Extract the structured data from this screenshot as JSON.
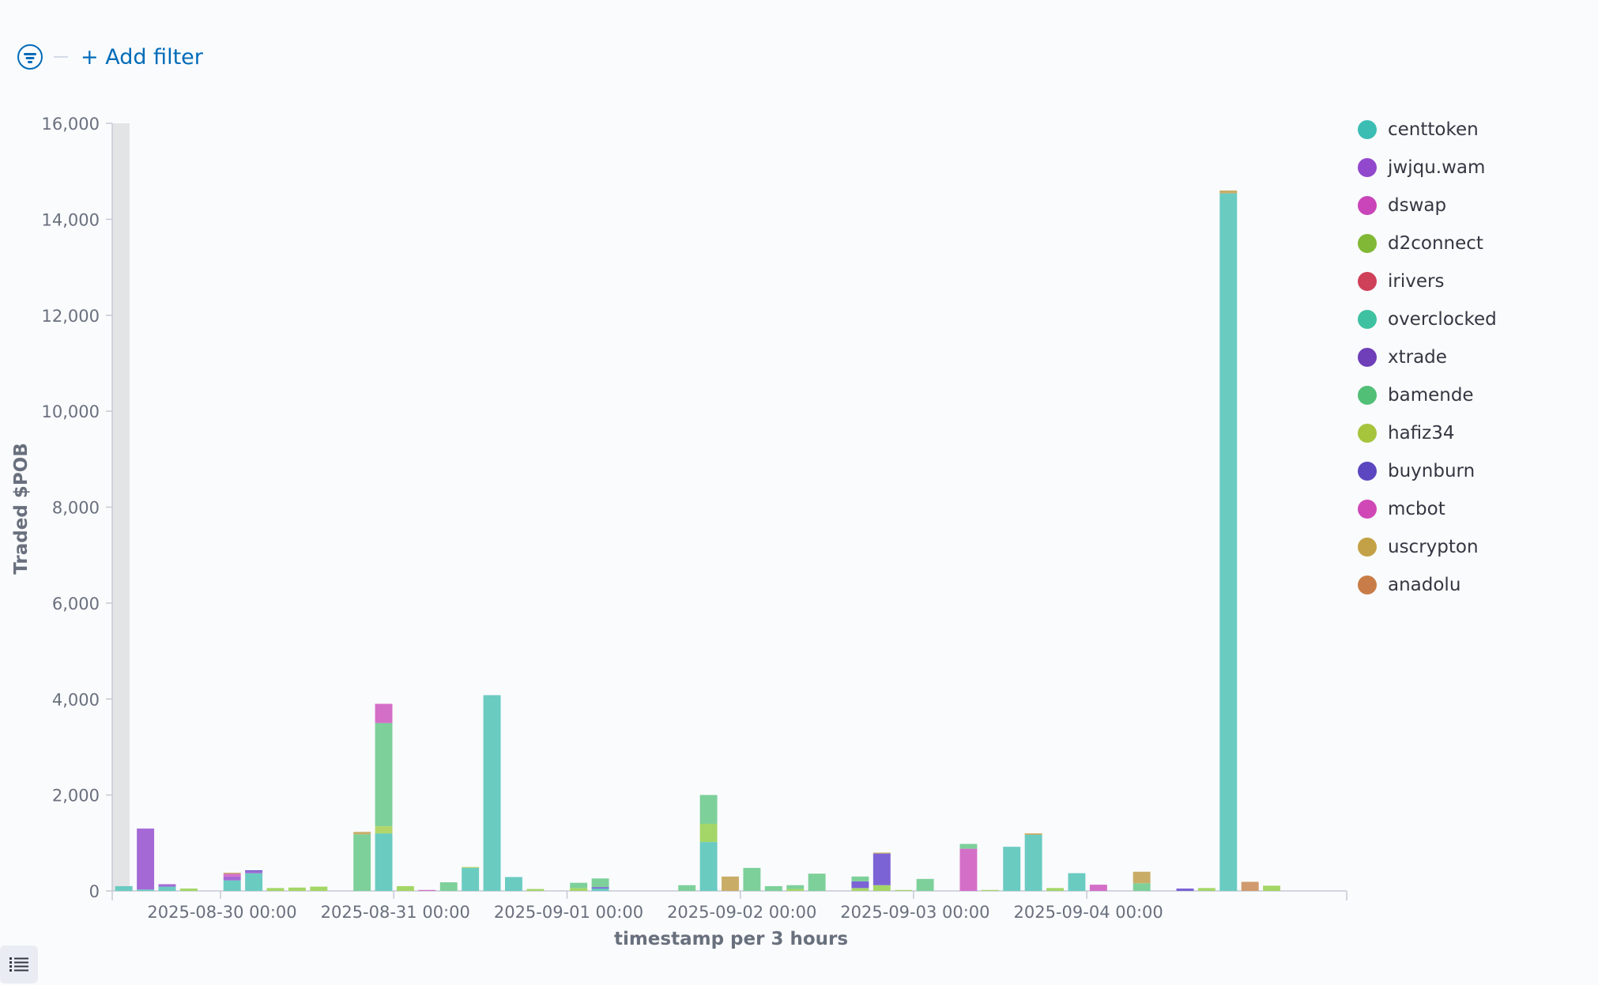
{
  "filter_bar": {
    "add_filter_label": "+ Add filter"
  },
  "legend_toggle_icon": "list-icon",
  "chart_data": {
    "type": "bar",
    "stacked": true,
    "xlabel": "timestamp per 3 hours",
    "ylabel": "Traded $POB",
    "ylim": [
      0,
      16000
    ],
    "yticks": [
      "0",
      "2,000",
      "4,000",
      "6,000",
      "8,000",
      "10,000",
      "12,000",
      "14,000",
      "16,000"
    ],
    "xticks": [
      {
        "label": "2025-08-30 00:00",
        "index": 5
      },
      {
        "label": "2025-08-31 00:00",
        "index": 13
      },
      {
        "label": "2025-09-01 00:00",
        "index": 21
      },
      {
        "label": "2025-09-02 00:00",
        "index": 29
      },
      {
        "label": "2025-09-03 00:00",
        "index": 37
      },
      {
        "label": "2025-09-04 00:00",
        "index": 45
      }
    ],
    "num_buckets": 57,
    "grid": false,
    "legend_position": "right",
    "series": [
      {
        "name": "centtoken",
        "color": "#54b399"
      },
      {
        "name": "jwjqu.wam",
        "color": "#9170b8"
      },
      {
        "name": "dswap",
        "color": "#ca8eae"
      },
      {
        "name": "d2connect",
        "color": "#d6bf57"
      },
      {
        "name": "irivers",
        "color": "#b9a888"
      },
      {
        "name": "overclocked",
        "color": "#da8b45"
      },
      {
        "name": "xtrade",
        "color": "#aa6556"
      },
      {
        "name": "bamende",
        "color": "#e7664c"
      },
      {
        "name": "hafiz34",
        "color": "#6092c0"
      },
      {
        "name": "buynburn",
        "color": "#d36086"
      },
      {
        "name": "mcbot",
        "color": "#f5a35c"
      },
      {
        "name": "uscrypton",
        "color": "#c5a89a"
      },
      {
        "name": "anadolu",
        "color": "#8bd1a0"
      }
    ],
    "legend_colors": [
      "#3cbdb4",
      "#9248cc",
      "#c945b9",
      "#81b836",
      "#cf4159",
      "#3ec1a0",
      "#6f3eb9",
      "#52bf77",
      "#a6c43c",
      "#5c47c0",
      "#cf48b6",
      "#c3a146",
      "#c87d48"
    ],
    "bars": [
      {
        "index": 0,
        "segments": [
          {
            "value": 100,
            "color": "#6acbc1"
          }
        ]
      },
      {
        "index": 1,
        "segments": [
          {
            "value": 30,
            "color": "#6acbc1"
          },
          {
            "value": 1270,
            "color": "#a569d6"
          }
        ]
      },
      {
        "index": 2,
        "segments": [
          {
            "value": 90,
            "color": "#6acbc1"
          },
          {
            "value": 50,
            "color": "#a569d6"
          }
        ]
      },
      {
        "index": 3,
        "segments": [
          {
            "value": 50,
            "color": "#a4d667"
          }
        ]
      },
      {
        "index": 5,
        "segments": [
          {
            "value": 220,
            "color": "#6acbc1"
          },
          {
            "value": 80,
            "color": "#a569d6"
          },
          {
            "value": 60,
            "color": "#d46fc8"
          },
          {
            "value": 20,
            "color": "#c9ad67"
          }
        ]
      },
      {
        "index": 6,
        "segments": [
          {
            "value": 370,
            "color": "#6acbc1"
          },
          {
            "value": 40,
            "color": "#a569d6"
          },
          {
            "value": 20,
            "color": "#5d4ec4"
          }
        ]
      },
      {
        "index": 7,
        "segments": [
          {
            "value": 60,
            "color": "#a4d667"
          }
        ]
      },
      {
        "index": 8,
        "segments": [
          {
            "value": 70,
            "color": "#a4d667"
          }
        ]
      },
      {
        "index": 9,
        "segments": [
          {
            "value": 90,
            "color": "#a4d667"
          }
        ]
      },
      {
        "index": 11,
        "segments": [
          {
            "value": 1180,
            "color": "#7dd09a"
          },
          {
            "value": 50,
            "color": "#c9ad67"
          }
        ]
      },
      {
        "index": 12,
        "segments": [
          {
            "value": 1200,
            "color": "#6acbc1"
          },
          {
            "value": 150,
            "color": "#b3d66a"
          },
          {
            "value": 2150,
            "color": "#7dd09a"
          },
          {
            "value": 400,
            "color": "#d46fc8"
          }
        ]
      },
      {
        "index": 13,
        "segments": [
          {
            "value": 100,
            "color": "#a4d667"
          }
        ]
      },
      {
        "index": 14,
        "segments": [
          {
            "value": 20,
            "color": "#d46fc8"
          }
        ]
      },
      {
        "index": 15,
        "segments": [
          {
            "value": 180,
            "color": "#7dd09a"
          }
        ]
      },
      {
        "index": 16,
        "segments": [
          {
            "value": 480,
            "color": "#6acbc1"
          },
          {
            "value": 20,
            "color": "#b3d66a"
          }
        ]
      },
      {
        "index": 17,
        "segments": [
          {
            "value": 4080,
            "color": "#6acbc1"
          }
        ]
      },
      {
        "index": 18,
        "segments": [
          {
            "value": 290,
            "color": "#6acbc1"
          }
        ]
      },
      {
        "index": 19,
        "segments": [
          {
            "value": 40,
            "color": "#a4d667"
          }
        ]
      },
      {
        "index": 21,
        "segments": [
          {
            "value": 60,
            "color": "#a4d667"
          },
          {
            "value": 110,
            "color": "#7dd09a"
          }
        ]
      },
      {
        "index": 22,
        "segments": [
          {
            "value": 50,
            "color": "#6acbc1"
          },
          {
            "value": 30,
            "color": "#7b63d6"
          },
          {
            "value": 180,
            "color": "#7dd09a"
          }
        ]
      },
      {
        "index": 26,
        "segments": [
          {
            "value": 120,
            "color": "#7dd09a"
          }
        ]
      },
      {
        "index": 27,
        "segments": [
          {
            "value": 1020,
            "color": "#6acbc1"
          },
          {
            "value": 380,
            "color": "#a4d667"
          },
          {
            "value": 600,
            "color": "#7dd09a"
          }
        ]
      },
      {
        "index": 28,
        "segments": [
          {
            "value": 300,
            "color": "#c9ad67"
          }
        ]
      },
      {
        "index": 29,
        "segments": [
          {
            "value": 480,
            "color": "#7dd09a"
          }
        ]
      },
      {
        "index": 30,
        "segments": [
          {
            "value": 100,
            "color": "#7dd09a"
          }
        ]
      },
      {
        "index": 31,
        "segments": [
          {
            "value": 40,
            "color": "#a4d667"
          },
          {
            "value": 80,
            "color": "#7dd09a"
          }
        ]
      },
      {
        "index": 32,
        "segments": [
          {
            "value": 360,
            "color": "#7dd09a"
          }
        ]
      },
      {
        "index": 34,
        "segments": [
          {
            "value": 60,
            "color": "#a4d667"
          },
          {
            "value": 140,
            "color": "#7b63d6"
          },
          {
            "value": 100,
            "color": "#7dd09a"
          }
        ]
      },
      {
        "index": 35,
        "segments": [
          {
            "value": 120,
            "color": "#a4d667"
          },
          {
            "value": 660,
            "color": "#7b63d6"
          },
          {
            "value": 20,
            "color": "#c9ad67"
          }
        ]
      },
      {
        "index": 36,
        "segments": [
          {
            "value": 20,
            "color": "#a4d667"
          }
        ]
      },
      {
        "index": 37,
        "segments": [
          {
            "value": 250,
            "color": "#7dd09a"
          }
        ]
      },
      {
        "index": 39,
        "segments": [
          {
            "value": 880,
            "color": "#d46fc8"
          },
          {
            "value": 100,
            "color": "#7dd09a"
          }
        ]
      },
      {
        "index": 40,
        "segments": [
          {
            "value": 20,
            "color": "#a4d667"
          }
        ]
      },
      {
        "index": 41,
        "segments": [
          {
            "value": 920,
            "color": "#6acbc1"
          }
        ]
      },
      {
        "index": 42,
        "segments": [
          {
            "value": 1170,
            "color": "#6acbc1"
          },
          {
            "value": 30,
            "color": "#c9ad67"
          }
        ]
      },
      {
        "index": 43,
        "segments": [
          {
            "value": 60,
            "color": "#a4d667"
          }
        ]
      },
      {
        "index": 44,
        "segments": [
          {
            "value": 370,
            "color": "#6acbc1"
          }
        ]
      },
      {
        "index": 45,
        "segments": [
          {
            "value": 130,
            "color": "#d46fc8"
          }
        ]
      },
      {
        "index": 47,
        "segments": [
          {
            "value": 160,
            "color": "#7dd09a"
          },
          {
            "value": 240,
            "color": "#c9ad67"
          }
        ]
      },
      {
        "index": 49,
        "segments": [
          {
            "value": 50,
            "color": "#7b63d6"
          }
        ]
      },
      {
        "index": 50,
        "segments": [
          {
            "value": 60,
            "color": "#a4d667"
          }
        ]
      },
      {
        "index": 51,
        "segments": [
          {
            "value": 14540,
            "color": "#6acbc1"
          },
          {
            "value": 60,
            "color": "#c9ad67"
          }
        ]
      },
      {
        "index": 52,
        "segments": [
          {
            "value": 190,
            "color": "#d09a6e"
          }
        ]
      },
      {
        "index": 53,
        "segments": [
          {
            "value": 110,
            "color": "#a4d667"
          }
        ]
      }
    ]
  }
}
